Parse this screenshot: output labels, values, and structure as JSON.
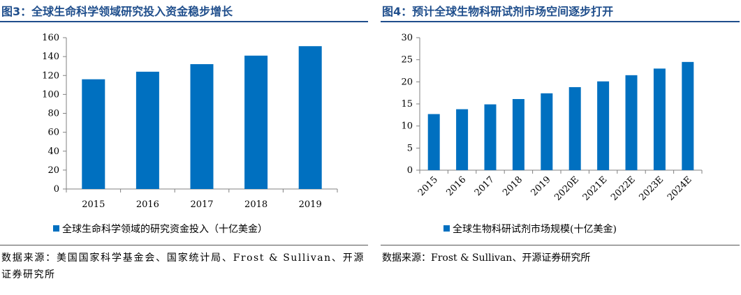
{
  "figures": [
    {
      "title": "图3：全球生命科学领域研究投入资金稳步增长",
      "source": "数据来源：美国国家科学基金会、国家统计局、Frost & Sullivan、开源证券研究所"
    },
    {
      "title": "图4：预计全球生物科研试剂市场空间逐步打开",
      "source": "数据来源：Frost & Sullivan、开源证券研究所"
    }
  ],
  "chart_data": [
    {
      "type": "bar",
      "title": "图3：全球生命科学领域研究投入资金稳步增长",
      "categories": [
        "2015",
        "2016",
        "2017",
        "2018",
        "2019"
      ],
      "series": [
        {
          "name": "全球生命科学领域的研究资金投入（十亿美金）",
          "values": [
            116,
            124,
            132,
            141,
            151
          ]
        }
      ],
      "ylim": [
        0,
        160
      ],
      "yticks": [
        0,
        20,
        40,
        60,
        80,
        100,
        120,
        140,
        160
      ],
      "grid": false,
      "legend": "bottom-left",
      "color": "#0070c0"
    },
    {
      "type": "bar",
      "title": "图4：预计全球生物科研试剂市场空间逐步打开",
      "categories": [
        "2015",
        "2016",
        "2017",
        "2018",
        "2019",
        "2020E",
        "2021E",
        "2022E",
        "2023E",
        "2024E"
      ],
      "series": [
        {
          "name": "全球生物科研试剂市场规模(十亿美金)",
          "values": [
            12.7,
            13.8,
            14.9,
            16.1,
            17.4,
            18.8,
            20.1,
            21.5,
            23.0,
            24.5
          ]
        }
      ],
      "ylim": [
        0,
        30
      ],
      "yticks": [
        0,
        5,
        10,
        15,
        20,
        25,
        30
      ],
      "grid": false,
      "legend": "bottom-center",
      "color": "#0070c0"
    }
  ]
}
